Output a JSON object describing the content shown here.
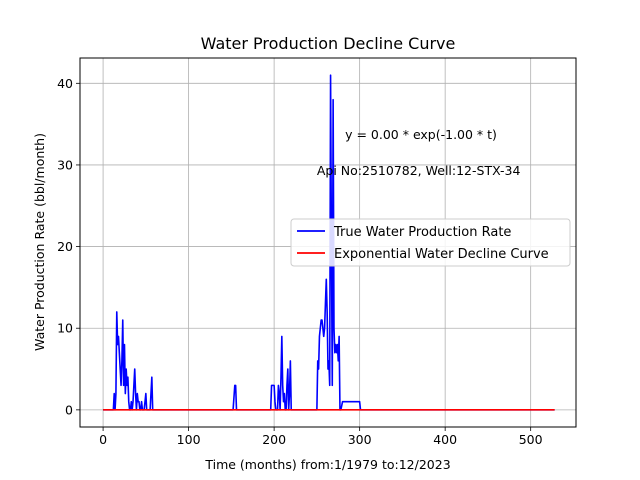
{
  "chart_data": {
    "type": "line",
    "title": "Water Production Decline Curve",
    "xlabel": "Time (months) from:1/1979 to:12/2023",
    "ylabel": "Water Production Rate (bbl/month)",
    "xlim": [
      -27,
      553
    ],
    "ylim": [
      -2.1,
      43.1
    ],
    "xticks": [
      0,
      100,
      200,
      300,
      400,
      500
    ],
    "yticks": [
      0,
      10,
      20,
      30,
      40
    ],
    "grid": true,
    "legend_position": "center-right",
    "annotations": [
      {
        "text": "y = 0.00 * exp(-1.00 * t)",
        "x": 283,
        "y": 33.7
      },
      {
        "text": "Api No:2510782, Well:12-STX-34",
        "x": 250,
        "y": 29.3
      }
    ],
    "series": [
      {
        "name": "True Water Production Rate",
        "color": "#0000ff",
        "points": [
          [
            0,
            0
          ],
          [
            12,
            0
          ],
          [
            13,
            2
          ],
          [
            14,
            0
          ],
          [
            15,
            2
          ],
          [
            16,
            12
          ],
          [
            17,
            8
          ],
          [
            18,
            9
          ],
          [
            19,
            7
          ],
          [
            20,
            5
          ],
          [
            21,
            3
          ],
          [
            22,
            6
          ],
          [
            23,
            11
          ],
          [
            24,
            3
          ],
          [
            25,
            8
          ],
          [
            26,
            2
          ],
          [
            27,
            5
          ],
          [
            28,
            3
          ],
          [
            29,
            4
          ],
          [
            30,
            1
          ],
          [
            31,
            0
          ],
          [
            32,
            0
          ],
          [
            33,
            1
          ],
          [
            34,
            0
          ],
          [
            35,
            1
          ],
          [
            36,
            3
          ],
          [
            37,
            5
          ],
          [
            38,
            2
          ],
          [
            39,
            0
          ],
          [
            40,
            2
          ],
          [
            41,
            1
          ],
          [
            42,
            1
          ],
          [
            43,
            0
          ],
          [
            44,
            0
          ],
          [
            45,
            1
          ],
          [
            46,
            0
          ],
          [
            48,
            0
          ],
          [
            50,
            2
          ],
          [
            51,
            0
          ],
          [
            55,
            0
          ],
          [
            57,
            4
          ],
          [
            58,
            0
          ],
          [
            152,
            0
          ],
          [
            154,
            3
          ],
          [
            155,
            3
          ],
          [
            156,
            0
          ],
          [
            196,
            0
          ],
          [
            197,
            3
          ],
          [
            199,
            3
          ],
          [
            200,
            3
          ],
          [
            201,
            1
          ],
          [
            202,
            0
          ],
          [
            204,
            0
          ],
          [
            205,
            3
          ],
          [
            206,
            2
          ],
          [
            207,
            0
          ],
          [
            208,
            4
          ],
          [
            209,
            9
          ],
          [
            210,
            3
          ],
          [
            211,
            1
          ],
          [
            212,
            2
          ],
          [
            213,
            0
          ],
          [
            214,
            0
          ],
          [
            215,
            3
          ],
          [
            216,
            5
          ],
          [
            217,
            0
          ],
          [
            218,
            2
          ],
          [
            219,
            6
          ],
          [
            220,
            0
          ],
          [
            221,
            0
          ],
          [
            250,
            0
          ],
          [
            251,
            6
          ],
          [
            252,
            5
          ],
          [
            253,
            9
          ],
          [
            254,
            10
          ],
          [
            255,
            11
          ],
          [
            256,
            11
          ],
          [
            257,
            10
          ],
          [
            258,
            9
          ],
          [
            259,
            10
          ],
          [
            260,
            13
          ],
          [
            261,
            16
          ],
          [
            262,
            12
          ],
          [
            263,
            5
          ],
          [
            264,
            6
          ],
          [
            265,
            3
          ],
          [
            266,
            41
          ],
          [
            267,
            20
          ],
          [
            268,
            3
          ],
          [
            269,
            38
          ],
          [
            270,
            10
          ],
          [
            271,
            7
          ],
          [
            272,
            8
          ],
          [
            273,
            7
          ],
          [
            274,
            8
          ],
          [
            275,
            6
          ],
          [
            276,
            9
          ],
          [
            277,
            0
          ],
          [
            278,
            0
          ],
          [
            280,
            1
          ],
          [
            290,
            1
          ],
          [
            295,
            1
          ],
          [
            300,
            1
          ],
          [
            301,
            0
          ],
          [
            528,
            0
          ]
        ]
      },
      {
        "name": "Exponential Water Decline Curve",
        "color": "#ff0000",
        "points": [
          [
            0,
            0
          ],
          [
            528,
            0
          ]
        ]
      }
    ]
  }
}
